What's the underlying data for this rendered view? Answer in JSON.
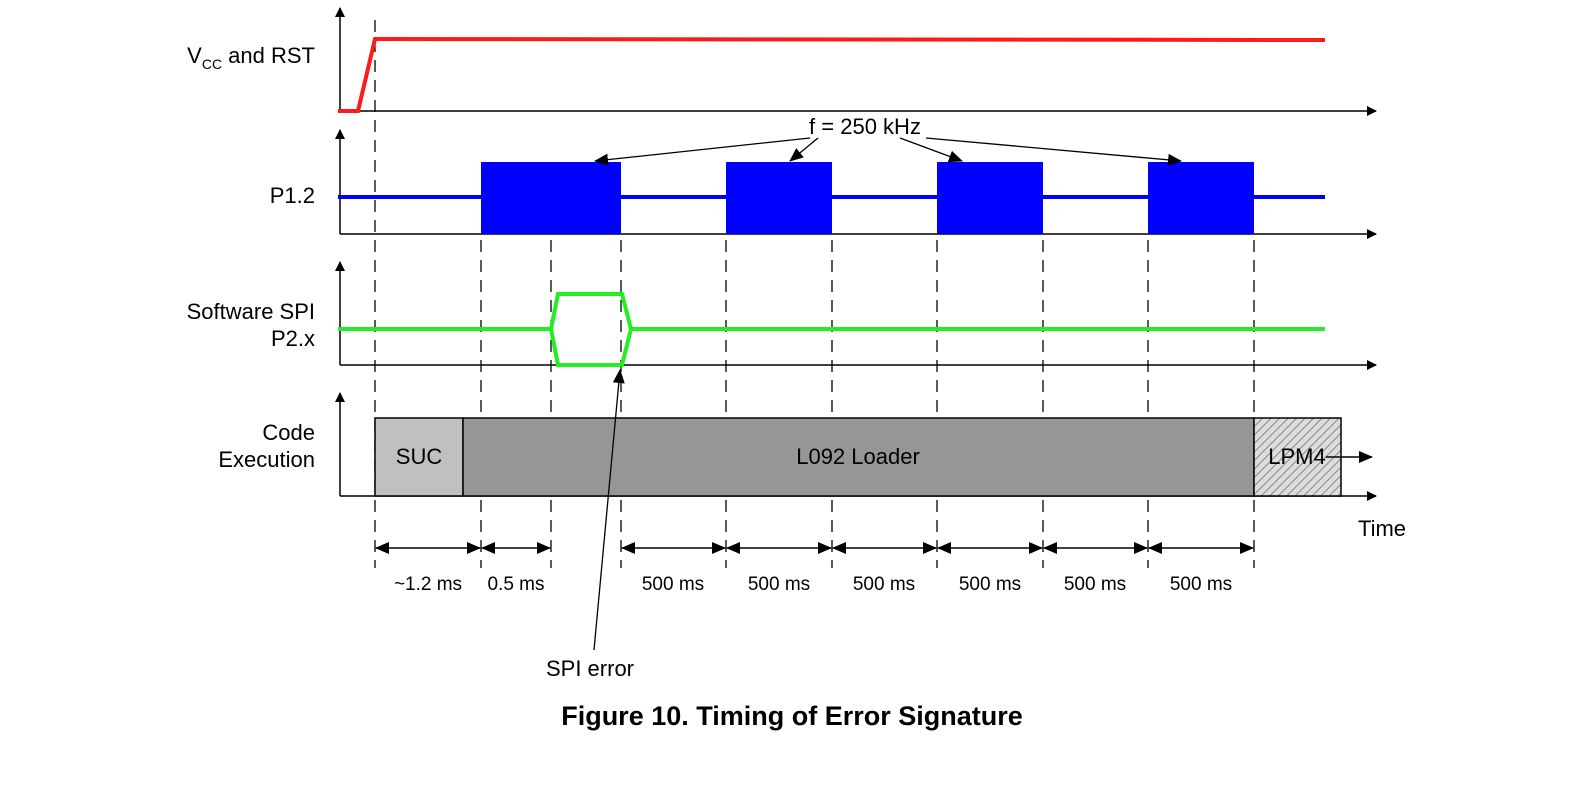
{
  "signals": {
    "vcc_label_main": "V",
    "vcc_label_sub": "CC",
    "vcc_label_rest": " and RST",
    "p12_label": "P1.2",
    "spi_label_line1": "Software SPI",
    "spi_label_line2": "P2.x",
    "code_label_line1": "Code",
    "code_label_line2": "Execution"
  },
  "annotations": {
    "frequency": "f = 250 kHz",
    "spi_error": "SPI error"
  },
  "execution_blocks": {
    "suc": "SUC",
    "loader": "L092 Loader",
    "lpm4": "LPM4"
  },
  "axis": {
    "time_label": "Time"
  },
  "durations": [
    "~1.2 ms",
    "0.5 ms",
    "500 ms",
    "500 ms",
    "500 ms",
    "500 ms",
    "500 ms",
    "500 ms"
  ],
  "caption": "Figure 10. Timing of Error Signature",
  "colors": {
    "vcc": "#ff1a1a",
    "p12": "#0000ff",
    "spi": "#22ee22",
    "suc_fill": "#c0c0c0",
    "loader_fill": "#969696",
    "lpm4_fill": "#d8d8d8"
  }
}
